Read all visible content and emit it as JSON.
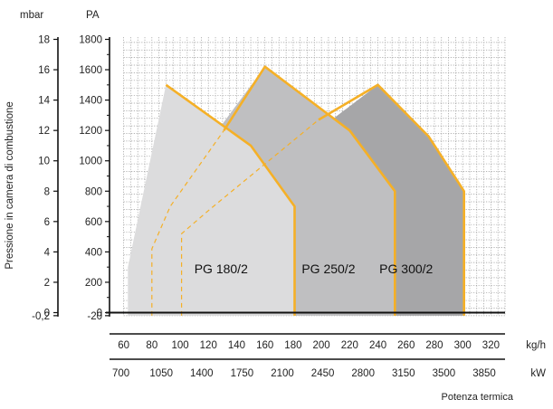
{
  "chart_data": {
    "type": "area",
    "ylabel": "Pressione in camera di combustione",
    "xlabel": "Potenza termica",
    "axes": {
      "mbar": {
        "unit": "mbar",
        "ticks": [
          "18",
          "16",
          "14",
          "12",
          "10",
          "8",
          "6",
          "4",
          "2",
          "0",
          "-0,2"
        ],
        "tick_values_pa": [
          1800,
          1600,
          1400,
          1200,
          1000,
          800,
          600,
          400,
          200,
          0,
          -20
        ]
      },
      "pa": {
        "unit": "PA",
        "ticks": [
          "1800",
          "1600",
          "1400",
          "1200",
          "1000",
          "800",
          "600",
          "400",
          "200",
          "0",
          "-20"
        ],
        "tick_values": [
          1800,
          1600,
          1400,
          1200,
          1000,
          800,
          600,
          400,
          200,
          0,
          -20
        ],
        "ylim": [
          -20,
          1800
        ]
      },
      "kgh": {
        "unit": "kg/h",
        "ticks": [
          "60",
          "80",
          "100",
          "120",
          "140",
          "160",
          "180",
          "200",
          "220",
          "240",
          "260",
          "280",
          "300",
          "320"
        ],
        "tick_values": [
          60,
          80,
          100,
          120,
          140,
          160,
          180,
          200,
          220,
          240,
          260,
          280,
          300,
          320
        ],
        "xlim": [
          50,
          330
        ]
      },
      "kw": {
        "unit": "kW",
        "ticks": [
          "700",
          "1050",
          "1400",
          "1750",
          "2100",
          "2450",
          "2800",
          "3150",
          "3500",
          "3850"
        ],
        "tick_values_kgh": [
          60,
          80,
          100,
          120,
          140,
          160,
          180,
          200,
          220,
          240
        ]
      }
    },
    "grid": true,
    "series": [
      {
        "name": "PG 300/2",
        "fill": "#a6a6a8",
        "label_at": [
          260,
          260
        ],
        "points": [
          [
            203,
            1240
          ],
          [
            240,
            1500
          ],
          [
            276,
            1160
          ],
          [
            301,
            800
          ],
          [
            301,
            -20
          ],
          [
            252,
            -20
          ],
          [
            252,
            800
          ],
          [
            220,
            1200
          ],
          [
            203,
            1240
          ]
        ],
        "outline": [
          [
            198,
            1270
          ],
          [
            240,
            1500
          ],
          [
            276,
            1160
          ],
          [
            301,
            800
          ],
          [
            301,
            -20
          ]
        ],
        "dashed": null
      },
      {
        "name": "PG 250/2",
        "fill": "#bfbfc1",
        "label_at": [
          205,
          260
        ],
        "points": [
          [
            121,
            1130
          ],
          [
            160,
            1620
          ],
          [
            220,
            1200
          ],
          [
            252,
            800
          ],
          [
            252,
            -20
          ],
          [
            181,
            -20
          ],
          [
            181,
            700
          ],
          [
            150,
            1100
          ],
          [
            121,
            1130
          ]
        ],
        "outline": [
          [
            131,
            1200
          ],
          [
            160,
            1620
          ],
          [
            220,
            1200
          ],
          [
            252,
            800
          ],
          [
            252,
            -20
          ]
        ],
        "dashed": [
          [
            101,
            -20
          ],
          [
            101,
            520
          ],
          [
            121,
            680
          ],
          [
            198,
            1270
          ]
        ]
      },
      {
        "name": "PG 180/2",
        "fill": "#dcdcdd",
        "label_at": [
          129,
          260
        ],
        "points": [
          [
            63,
            -20
          ],
          [
            63,
            300
          ],
          [
            90,
            1500
          ],
          [
            150,
            1100
          ],
          [
            181,
            700
          ],
          [
            181,
            -20
          ]
        ],
        "outline": [
          [
            90,
            1500
          ],
          [
            150,
            1100
          ],
          [
            181,
            700
          ],
          [
            181,
            -20
          ]
        ],
        "dashed": [
          [
            80,
            -20
          ],
          [
            80,
            420
          ],
          [
            93,
            700
          ],
          [
            131,
            1200
          ]
        ]
      }
    ],
    "colors": {
      "outline": "#f5b027",
      "grid": "#9a9a9a",
      "axis": "#111111"
    }
  }
}
